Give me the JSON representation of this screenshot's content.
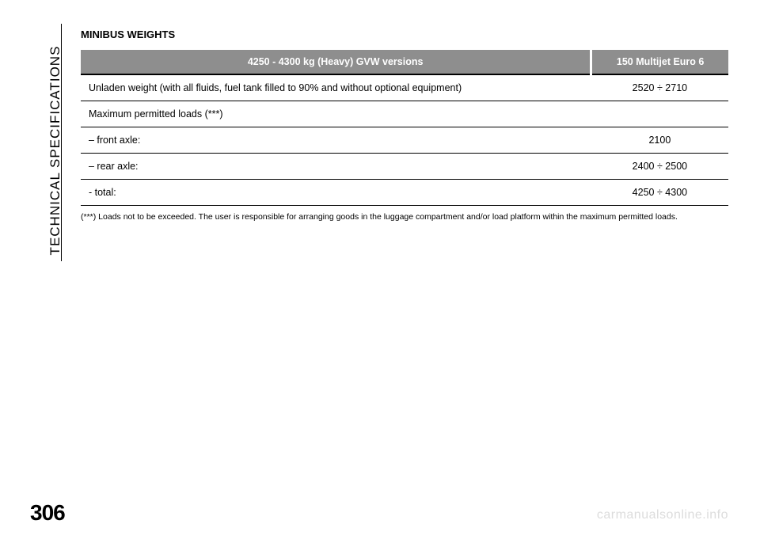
{
  "side_label": "TECHNICAL SPECIFICATIONS",
  "section_title": "MINIBUS WEIGHTS",
  "table": {
    "header_bg": "#8e8e8e",
    "header_fg": "#ffffff",
    "border_color": "#000000",
    "columns": [
      "4250 - 4300 kg (Heavy) GVW versions",
      "150 Multijet Euro 6"
    ],
    "rows": [
      {
        "label": "Unladen weight (with all fluids, fuel tank filled to 90% and without optional equipment)",
        "value": "2520 ÷ 2710"
      },
      {
        "label": "Maximum permitted loads (***)",
        "value": ""
      },
      {
        "label": "– front axle:",
        "value": "2100"
      },
      {
        "label": "– rear axle:",
        "value": "2400 ÷ 2500"
      },
      {
        "label": "- total:",
        "value": "4250 ÷ 4300"
      }
    ]
  },
  "footnote": "(***) Loads not to be exceeded. The user is responsible for arranging goods in the luggage compartment and/or load platform within the maximum permitted loads.",
  "page_number": "306",
  "watermark": "carmanualsonline.info"
}
